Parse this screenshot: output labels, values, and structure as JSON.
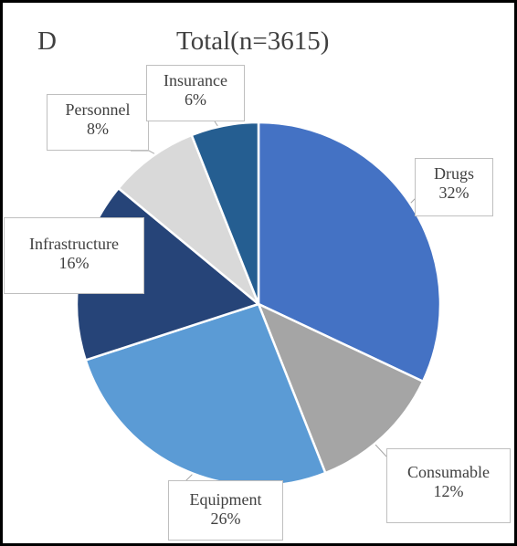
{
  "panel_letter": "D",
  "chart_data": {
    "type": "pie",
    "title": "Total(n=3615)",
    "categories": [
      "Drugs",
      "Consumable",
      "Equipment",
      "Infrastructure",
      "Personnel",
      "Insurance"
    ],
    "values": [
      32,
      12,
      26,
      16,
      8,
      6
    ],
    "value_labels": [
      "32%",
      "12%",
      "26%",
      "16%",
      "8%",
      "6%"
    ],
    "colors": [
      "#4472c4",
      "#a5a5a5",
      "#5b9bd5",
      "#264478",
      "#d9d9d9",
      "#255e91"
    ],
    "start": "12 o'clock, clockwise",
    "legend": "none"
  }
}
